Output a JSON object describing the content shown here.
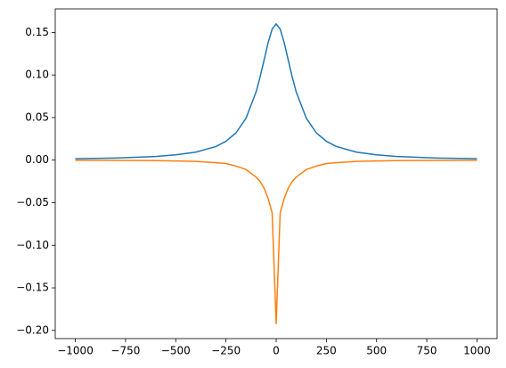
{
  "chart_data": {
    "type": "line",
    "x": [
      -1000,
      -800,
      -600,
      -500,
      -400,
      -300,
      -250,
      -200,
      -150,
      -100,
      -80,
      -60,
      -40,
      -20,
      0,
      20,
      40,
      60,
      80,
      100,
      150,
      200,
      250,
      300,
      400,
      500,
      600,
      800,
      1000
    ],
    "series": [
      {
        "color": "#1f77b4",
        "values": [
          0.0016,
          0.0025,
          0.0043,
          0.0062,
          0.0094,
          0.016,
          0.0221,
          0.032,
          0.0492,
          0.08,
          0.0976,
          0.1176,
          0.138,
          0.1538,
          0.16,
          0.1538,
          0.138,
          0.1176,
          0.0976,
          0.08,
          0.0492,
          0.032,
          0.0221,
          0.016,
          0.0094,
          0.0062,
          0.0043,
          0.0025,
          0.0016
        ]
      },
      {
        "color": "#ff7f0e",
        "values": [
          -0.0002,
          -0.0003,
          -0.0006,
          -0.001,
          -0.0015,
          -0.003,
          -0.004,
          -0.007,
          -0.011,
          -0.02,
          -0.025,
          -0.033,
          -0.045,
          -0.062,
          -0.192,
          -0.062,
          -0.045,
          -0.033,
          -0.025,
          -0.02,
          -0.011,
          -0.007,
          -0.004,
          -0.003,
          -0.0015,
          -0.001,
          -0.0006,
          -0.0003,
          -0.0002
        ]
      }
    ],
    "xlim": [
      -1100,
      1100
    ],
    "ylim": [
      -0.2096,
      0.1776
    ],
    "xticks": [
      {
        "value": -1000,
        "label": "−1000"
      },
      {
        "value": -750,
        "label": "−750"
      },
      {
        "value": -500,
        "label": "−500"
      },
      {
        "value": -250,
        "label": "−250"
      },
      0,
      250,
      500,
      750,
      1000
    ],
    "yticks": [
      {
        "value": -0.2,
        "label": "−0.20"
      },
      {
        "value": -0.15,
        "label": "−0.15"
      },
      {
        "value": -0.1,
        "label": "−0.10"
      },
      {
        "value": -0.05,
        "label": "−0.05"
      },
      {
        "value": 0,
        "label": "0.00"
      },
      {
        "value": 0.05,
        "label": "0.05"
      },
      {
        "value": 0.1,
        "label": "0.10"
      },
      {
        "value": 0.15,
        "label": "0.15"
      }
    ],
    "grid": false
  }
}
